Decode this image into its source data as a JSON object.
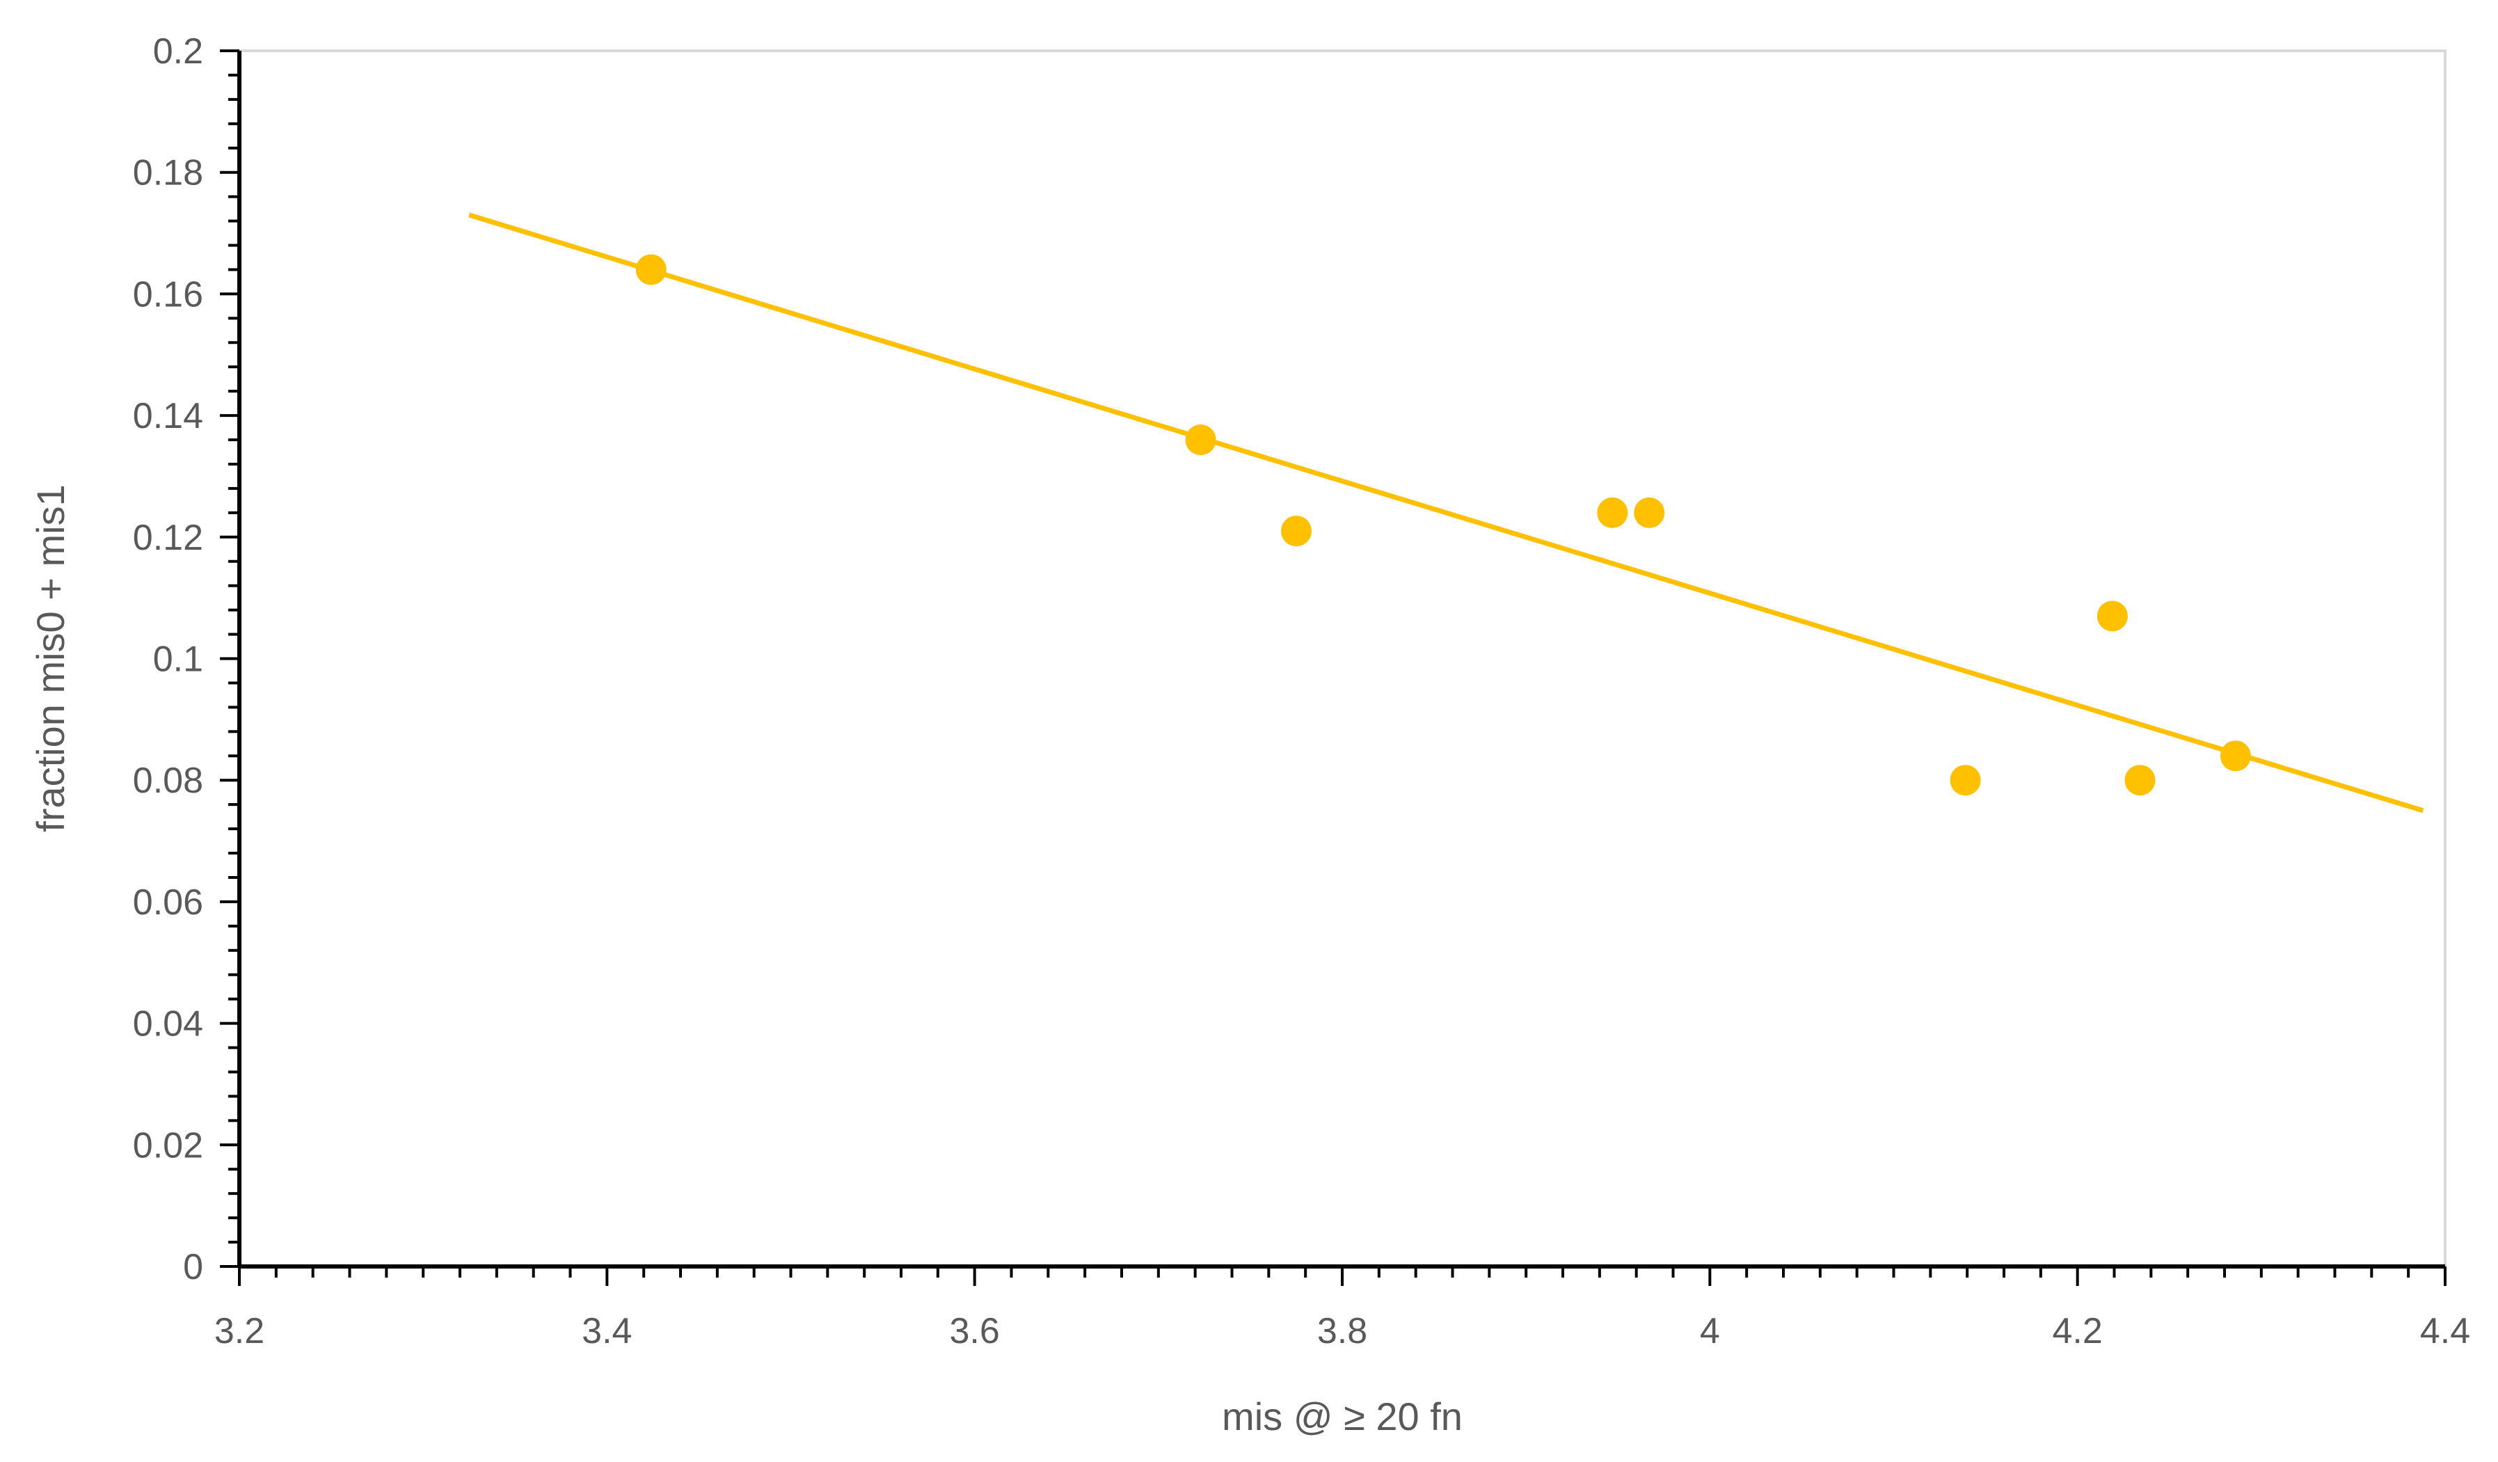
{
  "chart_data": {
    "type": "scatter",
    "title": "",
    "xlabel": "mis @ ≥ 20 fn",
    "ylabel": "fraction mis0 + mis1",
    "xlim": [
      3.2,
      4.4
    ],
    "ylim": [
      0,
      0.2
    ],
    "x_ticks": [
      "3.2",
      "3.4",
      "3.6",
      "3.8",
      "4",
      "4.2",
      "4.4"
    ],
    "y_ticks": [
      "0",
      "0.02",
      "0.04",
      "0.06",
      "0.08",
      "0.1",
      "0.12",
      "0.14",
      "0.16",
      "0.18",
      "0.2"
    ],
    "grid": false,
    "legend": "none",
    "series": [
      {
        "points": [
          {
            "x": 3.424,
            "y": 0.164
          },
          {
            "x": 3.723,
            "y": 0.136
          },
          {
            "x": 3.775,
            "y": 0.121
          },
          {
            "x": 3.947,
            "y": 0.124
          },
          {
            "x": 3.967,
            "y": 0.124
          },
          {
            "x": 4.139,
            "y": 0.08
          },
          {
            "x": 4.219,
            "y": 0.107
          },
          {
            "x": 4.234,
            "y": 0.08
          },
          {
            "x": 4.286,
            "y": 0.084
          }
        ]
      }
    ],
    "trendline": {
      "x_start": 3.325,
      "y_start": 0.173,
      "x_end": 4.388,
      "y_end": 0.075
    },
    "colors": {
      "marker": "#FFC000",
      "trendline": "#FFC000",
      "axis": "#000000",
      "text": "#595959",
      "frame": "#D9D9D9"
    }
  }
}
